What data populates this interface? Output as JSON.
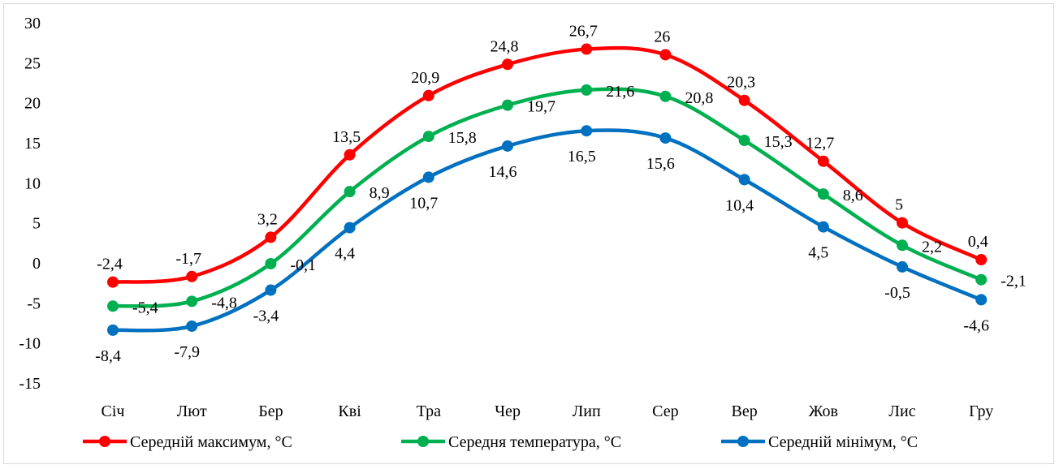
{
  "chart_data": {
    "type": "line",
    "categories": [
      "Січ",
      "Лют",
      "Бер",
      "Кві",
      "Тра",
      "Чер",
      "Лип",
      "Сер",
      "Вер",
      "Жов",
      "Лис",
      "Гру"
    ],
    "ylim": [
      -15,
      30
    ],
    "yticks": [
      "30",
      "25",
      "20",
      "15",
      "10",
      "5",
      "0",
      "-5",
      "-10",
      "-15"
    ],
    "grid": false,
    "legend_position": "bottom",
    "series": [
      {
        "name": "Середній максимум, °C",
        "color": "#ff0000",
        "values": [
          -2.4,
          -1.7,
          3.2,
          13.5,
          20.9,
          24.8,
          26.7,
          26,
          20.3,
          12.7,
          5,
          0.4
        ],
        "labels": [
          "-2,4",
          "-1,7",
          "3,2",
          "13,5",
          "20,9",
          "24,8",
          "26,7",
          "26",
          "20,3",
          "12,7",
          "5",
          "0,4"
        ]
      },
      {
        "name": "Середня температура, °C",
        "color": "#00b050",
        "values": [
          -5.4,
          -4.8,
          -0.1,
          8.9,
          15.8,
          19.7,
          21.6,
          20.8,
          15.3,
          8.6,
          2.2,
          -2.1
        ],
        "labels": [
          "-5,4",
          "-4,8",
          "-0,1",
          "8,9",
          "15,8",
          "19,7",
          "21,6",
          "20,8",
          "15,3",
          "8,6",
          "2,2",
          "-2,1"
        ]
      },
      {
        "name": "Середній мінімум, °C",
        "color": "#0070c0",
        "values": [
          -8.4,
          -7.9,
          -3.4,
          4.4,
          10.7,
          14.6,
          16.5,
          15.6,
          10.4,
          4.5,
          -0.5,
          -4.6
        ],
        "labels": [
          "-8,4",
          "-7,9",
          "-3,4",
          "4,4",
          "10,7",
          "14,6",
          "16,5",
          "15,6",
          "10,4",
          "4,5",
          "-0,5",
          "-4,6"
        ]
      }
    ]
  }
}
